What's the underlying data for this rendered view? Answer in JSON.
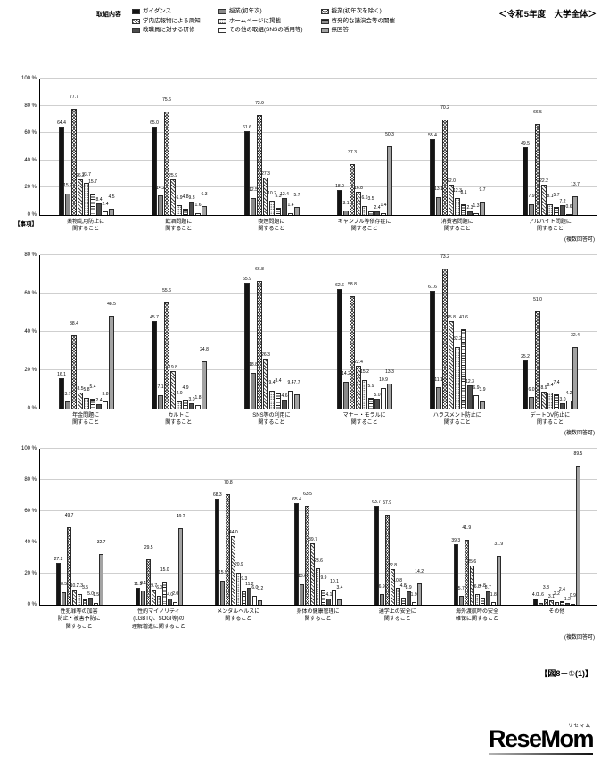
{
  "page": {
    "title": "＜令和5年度　大学全体＞",
    "caption": "【図8－①(1)】",
    "logo": {
      "text": "ReseMom",
      "ruby": "リセマム"
    }
  },
  "legend": {
    "title": "取組内容",
    "items": [
      "ガイダンス",
      "授業(初年次)",
      "授業(初年次を除く)",
      "学内広報物による周知",
      "ホームページに掲載",
      "啓発的な講演会等の開催",
      "教職員に対する研修",
      "その他の取組(SNSの活用等)",
      "無回答"
    ]
  },
  "chart_data": [
    {
      "type": "bar",
      "ylim": [
        0,
        100
      ],
      "ytick_step": 20,
      "yunit": "%",
      "axis_note": "【事項】",
      "note": "(複数回答可)",
      "legend_position": "top",
      "grid": true,
      "categories": [
        "薬物乱用防止に\n関すること",
        "飲酒問題に\n関すること",
        "喫煙問題に\n関すること",
        "ギャンブル等依存症に\n関すること",
        "消費者問題に\n関すること",
        "アルバイト問題に\n関すること"
      ],
      "series": [
        {
          "name": "ガイダンス",
          "values": [
            64.4,
            65.0,
            61.6,
            18.0,
            55.4,
            49.5
          ]
        },
        {
          "name": "授業(初年次)",
          "values": [
            15.9,
            14.2,
            12.5,
            3.1,
            13.1,
            7.9
          ]
        },
        {
          "name": "授業(初年次を除く)",
          "values": [
            77.7,
            75.6,
            72.9,
            37.3,
            70.2,
            66.5
          ]
        },
        {
          "name": "学内広報物による周知",
          "values": [
            26.2,
            25.9,
            27.3,
            16.8,
            22.0,
            22.2
          ]
        },
        {
          "name": "ホームページに掲載",
          "values": [
            23.7,
            6.9,
            10.2,
            6.6,
            12.3,
            8.1
          ]
        },
        {
          "name": "啓発的な講演会等の開催",
          "values": [
            15.7,
            4.8,
            5.3,
            3.5,
            8.1,
            5.7
          ]
        },
        {
          "name": "教職員に対する研修",
          "values": [
            8.4,
            9.8,
            12.4,
            2.4,
            2.3,
            7.2
          ]
        },
        {
          "name": "その他の取組(SNSの活用等)",
          "values": [
            2.4,
            1.6,
            1.4,
            1.4,
            1.3,
            0.6
          ]
        },
        {
          "name": "無回答",
          "values": [
            4.5,
            6.3,
            5.7,
            50.3,
            9.7,
            13.7
          ]
        }
      ]
    },
    {
      "type": "bar",
      "ylim": [
        0,
        80
      ],
      "ytick_step": 20,
      "yunit": "%",
      "axis_note": "",
      "note": "(複数回答可)",
      "legend_position": "top",
      "grid": true,
      "categories": [
        "年金問題に\n関すること",
        "カルトに\n関すること",
        "SNS等の利用に\n関すること",
        "マナー・モラルに\n関すること",
        "ハラスメント防止に\n関すること",
        "デートDV防止に\n関すること"
      ],
      "series": [
        {
          "name": "ガイダンス",
          "values": [
            16.1,
            45.7,
            65.9,
            62.6,
            61.6,
            25.2
          ]
        },
        {
          "name": "授業(初年次)",
          "values": [
            3.7,
            7.1,
            18.8,
            14.2,
            11.1,
            6.0
          ]
        },
        {
          "name": "授業(初年次を除く)",
          "values": [
            38.4,
            55.6,
            66.8,
            58.8,
            73.2,
            51.0
          ]
        },
        {
          "name": "学内広報物による周知",
          "values": [
            8.5,
            19.8,
            26.3,
            22.4,
            45.8,
            8.9
          ]
        },
        {
          "name": "ホームページに掲載",
          "values": [
            5.8,
            4.0,
            9.4,
            15.2,
            32.2,
            8.4
          ]
        },
        {
          "name": "啓発的な講演会等の開催",
          "values": [
            5.4,
            4.9,
            8.4,
            5.9,
            41.6,
            7.4
          ]
        },
        {
          "name": "教職員に対する研修",
          "values": [
            2.4,
            3.0,
            4.6,
            5.0,
            12.3,
            3.0
          ]
        },
        {
          "name": "その他の取組(SNSの活用等)",
          "values": [
            3.8,
            1.8,
            9.4,
            10.9,
            6.9,
            4.2
          ]
        },
        {
          "name": "無回答",
          "values": [
            48.5,
            24.8,
            7.7,
            13.3,
            3.9,
            32.4
          ]
        }
      ]
    },
    {
      "type": "bar",
      "ylim": [
        0,
        100
      ],
      "ytick_step": 20,
      "yunit": "%",
      "axis_note": "",
      "note": "(複数回答可)",
      "legend_position": "top",
      "grid": true,
      "categories": [
        "性犯罪等の加害\n防止・被害予防に\n関すること",
        "性的マイノリティ\n(LGBTQ、SOGI等)の\n理解増進に関すること",
        "メンタルヘルスに\n関すること",
        "身体の健康管理に\n関すること",
        "通学上の安全に\n関すること",
        "海外渡航時の安全\n確保に関すること",
        "その他"
      ],
      "series": [
        {
          "name": "ガイダンス",
          "values": [
            27.2,
            11.3,
            68.3,
            65.4,
            63.7,
            39.3,
            4.0
          ]
        },
        {
          "name": "授業(初年次)",
          "values": [
            8.5,
            9.1,
            15.9,
            13.6,
            6.9,
            5.7,
            1.6
          ]
        },
        {
          "name": "授業(初年次を除く)",
          "values": [
            49.7,
            29.5,
            70.8,
            63.5,
            57.9,
            41.9,
            3.8
          ]
        },
        {
          "name": "学内広報物による周知",
          "values": [
            10.2,
            9.7,
            44.0,
            39.7,
            22.8,
            25.6,
            3.1
          ]
        },
        {
          "name": "ホームページに掲載",
          "values": [
            7.3,
            6.0,
            20.9,
            23.6,
            10.8,
            6.8,
            2.2
          ]
        },
        {
          "name": "啓発的な講演会等の開催",
          "values": [
            3.5,
            15.0,
            9.3,
            9.9,
            4.8,
            4.8,
            2.4
          ]
        },
        {
          "name": "教職員に対する研修",
          "values": [
            5.0,
            4.0,
            11.2,
            4.1,
            8.9,
            8.7,
            1.2
          ]
        },
        {
          "name": "その他の取組(SNSの活用等)",
          "values": [
            1.5,
            2.0,
            6.0,
            10.1,
            1.9,
            1.8,
            0.9
          ]
        },
        {
          "name": "無回答",
          "values": [
            32.7,
            49.2,
            3.2,
            3.4,
            14.2,
            31.9,
            89.5
          ]
        }
      ]
    }
  ]
}
